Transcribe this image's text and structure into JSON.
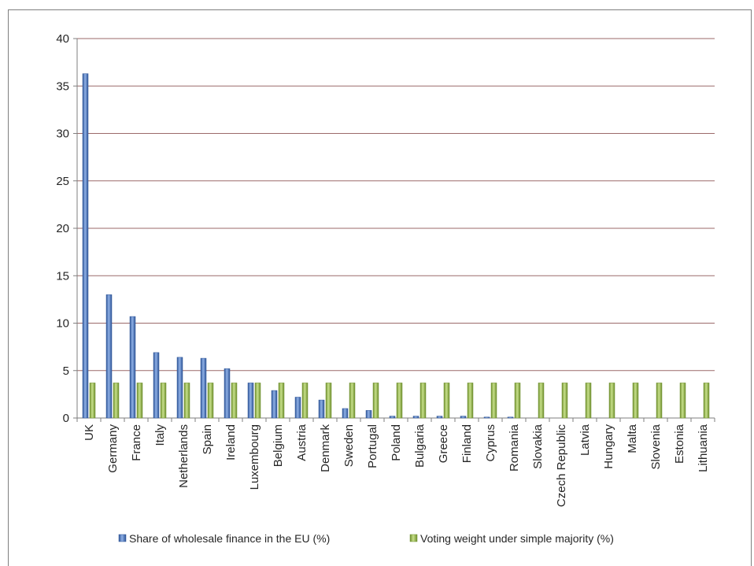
{
  "chart_data": {
    "type": "bar",
    "categories": [
      "UK",
      "Germany",
      "France",
      "Italy",
      "Netherlands",
      "Spain",
      "Ireland",
      "Luxembourg",
      "Belgium",
      "Austria",
      "Denmark",
      "Sweden",
      "Portugal",
      "Poland",
      "Bulgaria",
      "Greece",
      "Finland",
      "Cyprus",
      "Romania",
      "Slovakia",
      "Czech Republic",
      "Latvia",
      "Hungary",
      "Malta",
      "Slovenia",
      "Estonia",
      "Lithuania"
    ],
    "series": [
      {
        "name": "Share of wholesale finance in the EU (%)",
        "color": "#4472c4",
        "values": [
          36.3,
          13.0,
          10.7,
          6.9,
          6.4,
          6.3,
          5.2,
          3.7,
          2.9,
          2.2,
          1.9,
          1.0,
          0.8,
          0.2,
          0.2,
          0.2,
          0.2,
          0.1,
          0.1,
          0,
          0,
          0,
          0,
          0,
          0,
          0,
          0
        ]
      },
      {
        "name": "Voting weight under simple majority (%)",
        "color": "#9bbb59",
        "values": [
          3.7,
          3.7,
          3.7,
          3.7,
          3.7,
          3.7,
          3.7,
          3.7,
          3.7,
          3.7,
          3.7,
          3.7,
          3.7,
          3.7,
          3.7,
          3.7,
          3.7,
          3.7,
          3.7,
          3.7,
          3.7,
          3.7,
          3.7,
          3.7,
          3.7,
          3.7,
          3.7
        ]
      }
    ],
    "yticks": [
      "0",
      "5",
      "10",
      "15",
      "20",
      "25",
      "30",
      "35",
      "40"
    ],
    "ylim": [
      0,
      40
    ],
    "grid": true,
    "legend_position": "bottom"
  }
}
